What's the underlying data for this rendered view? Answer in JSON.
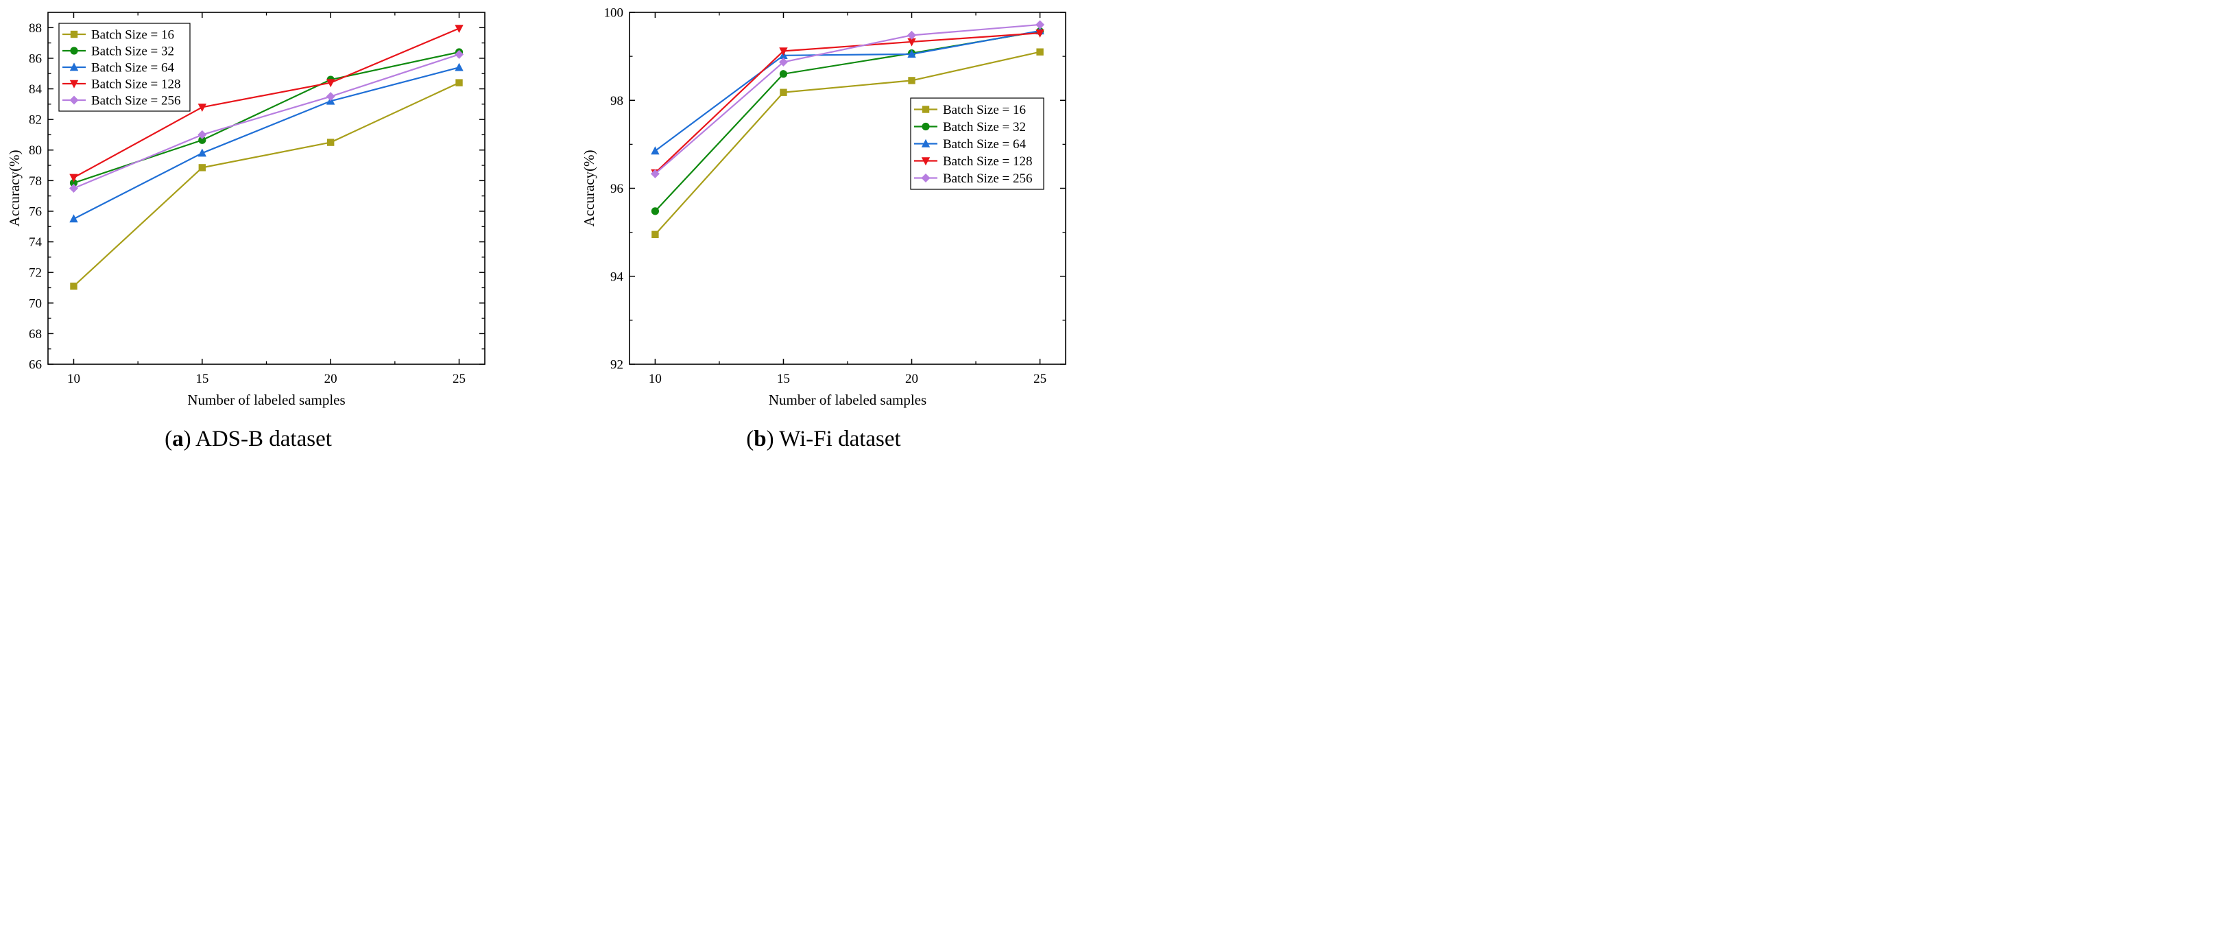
{
  "chart_data": [
    {
      "type": "line",
      "caption_letter": "a",
      "caption_text": " ADS-B dataset",
      "xlabel": "Number of labeled samples",
      "ylabel": "Accuracy(%)",
      "x": [
        10,
        15,
        20,
        25
      ],
      "xlim": [
        9,
        26
      ],
      "xticks": [
        10,
        15,
        20,
        25
      ],
      "ylim": [
        66,
        89
      ],
      "yticks": [
        66,
        68,
        70,
        72,
        74,
        76,
        78,
        80,
        82,
        84,
        86,
        88
      ],
      "legend_position": "top-left",
      "series": [
        {
          "name": "Batch Size = 16",
          "values": [
            71.1,
            78.85,
            80.5,
            84.4
          ],
          "color": "#a89f1a",
          "marker": "square"
        },
        {
          "name": "Batch Size = 32",
          "values": [
            77.85,
            80.65,
            84.6,
            86.4
          ],
          "color": "#0f8a0f",
          "marker": "circle"
        },
        {
          "name": "Batch Size = 64",
          "values": [
            75.5,
            79.8,
            83.2,
            85.4
          ],
          "color": "#1f6fd6",
          "marker": "triangle-up"
        },
        {
          "name": "Batch Size = 128",
          "values": [
            78.2,
            82.8,
            84.4,
            87.95
          ],
          "color": "#e8141a",
          "marker": "triangle-down"
        },
        {
          "name": "Batch Size = 256",
          "values": [
            77.5,
            81.0,
            83.5,
            86.25
          ],
          "color": "#b77ee0",
          "marker": "diamond"
        }
      ]
    },
    {
      "type": "line",
      "caption_letter": "b",
      "caption_text": " Wi-Fi dataset",
      "xlabel": "Number of labeled samples",
      "ylabel": "Accuracy(%)",
      "x": [
        10,
        15,
        20,
        25
      ],
      "xlim": [
        9,
        26
      ],
      "xticks": [
        10,
        15,
        20,
        25
      ],
      "ylim": [
        92,
        100
      ],
      "yticks": [
        92,
        94,
        96,
        98,
        100
      ],
      "legend_position": "right",
      "series": [
        {
          "name": "Batch Size = 16",
          "values": [
            94.95,
            98.18,
            98.45,
            99.1
          ],
          "color": "#a89f1a",
          "marker": "square"
        },
        {
          "name": "Batch Size = 32",
          "values": [
            95.48,
            98.6,
            99.07,
            99.57
          ],
          "color": "#0f8a0f",
          "marker": "circle"
        },
        {
          "name": "Batch Size = 64",
          "values": [
            96.85,
            99.02,
            99.05,
            99.58
          ],
          "color": "#1f6fd6",
          "marker": "triangle-up"
        },
        {
          "name": "Batch Size = 128",
          "values": [
            96.35,
            99.12,
            99.33,
            99.53
          ],
          "color": "#e8141a",
          "marker": "triangle-down"
        },
        {
          "name": "Batch Size = 256",
          "values": [
            96.33,
            98.87,
            99.48,
            99.72
          ],
          "color": "#b77ee0",
          "marker": "diamond"
        }
      ]
    }
  ]
}
